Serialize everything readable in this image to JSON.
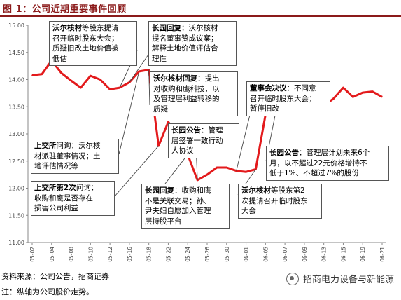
{
  "figure_title": "图 1：公司近期重要事件回顾",
  "footer": {
    "source": "资料来源：公司公告，招商证券",
    "note": "注：纵轴为公司股价走势。"
  },
  "watermark": {
    "text": "招商电力设备与新能源",
    "icon": "wechat-channel-icon"
  },
  "colors": {
    "line": "#e31a1c",
    "title": "#8b1a1a",
    "axis": "#888888"
  },
  "annotations": [
    {
      "head": "沃尔核材",
      "body": "等股东提请\n召开临时股东大会；\n质疑旧改土地价值被\n低估"
    },
    {
      "head": "长园回复",
      "body": "：沃尔核材\n提名董事赞成议案；\n解释土地价值评估合\n理性"
    },
    {
      "head": "沃尔核材回复",
      "body": "：提出\n对收购和鹰科技，以\n及管理层利益转移的\n质疑"
    },
    {
      "head": "董事会决议",
      "body": "：不同意\n召开临时股东大会；\n暂停旧改"
    },
    {
      "head": "上交所",
      "body": "问询：沃尔核\n材派驻董事情况；土\n地评估情况等"
    },
    {
      "head": "长园公告",
      "body": "：管理\n层签署一致行动\n人协议"
    },
    {
      "head": "长园公告",
      "body": "：管理层计划未来6个\n月，以不超过22元价格增持不\n低于1%、不超过7%的股份"
    },
    {
      "head": "上交所第2次",
      "body": "问询：\n收购和鹰是否存在\n损害公司利益"
    },
    {
      "head": "长园回复",
      "body": "：收购和鹰\n不是关联交易；孙、\n尹夫妇自愿加入管理\n层持股平台"
    },
    {
      "head": "沃尔核材",
      "body": "等股东第2\n次提请召开临时股东\n大会"
    }
  ],
  "chart_data": {
    "type": "line",
    "title": "",
    "xlabel": "",
    "ylabel": "",
    "ylim": [
      11.0,
      15.0
    ],
    "yticks": [
      "11.00",
      "11.50",
      "12.00",
      "12.50",
      "13.00",
      "13.50",
      "14.00",
      "14.50",
      "15.00"
    ],
    "grid": false,
    "legend": "none",
    "x": [
      "05-02",
      "05-03",
      "05-04",
      "05-05",
      "05-08",
      "05-09",
      "05-10",
      "05-11",
      "05-12",
      "05-15",
      "05-16",
      "05-17",
      "05-18",
      "05-19",
      "05-22",
      "05-23",
      "05-24",
      "05-25",
      "05-26",
      "05-29",
      "05-30",
      "05-31",
      "06-01",
      "06-02",
      "06-05",
      "06-06",
      "06-07",
      "06-08",
      "06-09",
      "06-12",
      "06-13",
      "06-14",
      "06-15",
      "06-16",
      "06-19",
      "06-20",
      "06-21"
    ],
    "xticks": [
      "05-02",
      "05-04",
      "05-08",
      "05-10",
      "05-12",
      "05-16",
      "05-18",
      "05-22",
      "05-24",
      "05-26",
      "05-30",
      "06-01",
      "06-05",
      "06-07",
      "06-09",
      "06-13",
      "06-15",
      "06-19",
      "06-21"
    ],
    "series": [
      {
        "name": "",
        "values": [
          14.08,
          14.1,
          14.35,
          14.12,
          13.98,
          13.85,
          14.07,
          14.0,
          13.82,
          13.85,
          13.95,
          14.15,
          14.18,
          12.78,
          13.22,
          13.0,
          12.62,
          12.15,
          12.25,
          12.38,
          12.38,
          12.32,
          12.3,
          12.35,
          13.35,
          13.35,
          13.62,
          13.78,
          13.62,
          13.58,
          13.52,
          13.65,
          13.85,
          13.68,
          13.76,
          13.78,
          13.68
        ]
      }
    ]
  }
}
